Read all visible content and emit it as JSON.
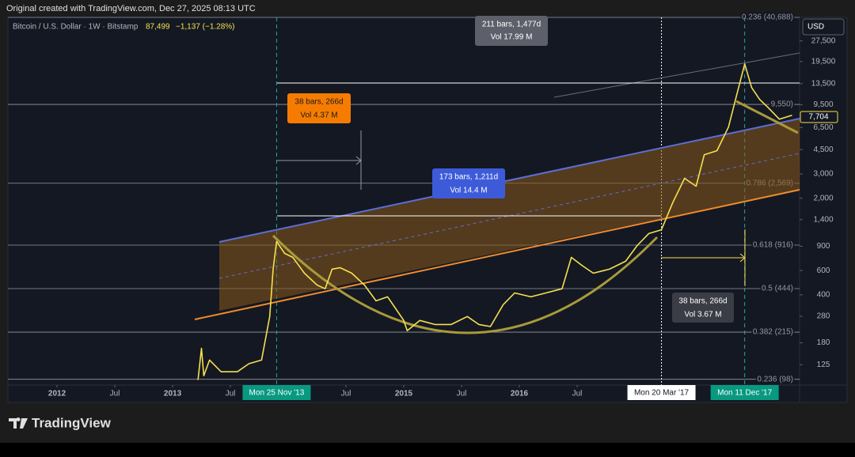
{
  "header": {
    "credit": "Original created with TradingView.com, Dec 27, 2025 08:13 UTC",
    "last": "87,499",
    "change": "−1,137 (−1.28%)",
    "currency": "USD",
    "price_tag": "7,704"
  },
  "chart_data": {
    "type": "line",
    "log_scale": true,
    "grid": false,
    "series": [
      {
        "name": "Bitcoin / U.S. Dollar · 1W · Bitstamp",
        "color": "#f5e050",
        "x": [
          2013.22,
          2013.25,
          2013.27,
          2013.32,
          2013.42,
          2013.56,
          2013.66,
          2013.77,
          2013.84,
          2013.87,
          2013.9,
          2013.97,
          2014.04,
          2014.14,
          2014.25,
          2014.32,
          2014.38,
          2014.45,
          2014.55,
          2014.66,
          2014.76,
          2014.86,
          2015.0,
          2015.03,
          2015.14,
          2015.27,
          2015.41,
          2015.55,
          2015.65,
          2015.75,
          2015.86,
          2015.96,
          2016.1,
          2016.23,
          2016.37,
          2016.45,
          2016.54,
          2016.64,
          2016.78,
          2016.92,
          2017.02,
          2017.12,
          2017.23,
          2017.33,
          2017.43,
          2017.53,
          2017.6,
          2017.71,
          2017.81,
          2017.88,
          2017.95,
          2018.01,
          2018.08,
          2018.15,
          2018.25,
          2018.36
        ],
        "values": [
          97,
          164,
          104,
          135,
          111,
          111,
          127,
          135,
          279,
          614,
          973,
          798,
          747,
          574,
          471,
          443,
          614,
          629,
          574,
          471,
          362,
          387,
          261,
          220,
          261,
          244,
          244,
          279,
          244,
          236,
          339,
          413,
          387,
          413,
          443,
          747,
          655,
          574,
          614,
          700,
          910,
          1110,
          1183,
          1875,
          2786,
          2443,
          4130,
          4415,
          6550,
          11090,
          18750,
          12650,
          10370,
          9100,
          7460,
          7980
        ]
      }
    ],
    "xlim": [
      2011.575,
      2018.425
    ],
    "xticks": [
      {
        "value": 2012,
        "label": "2012"
      },
      {
        "value": 2012.5,
        "label": "Jul"
      },
      {
        "value": 2013,
        "label": "2013"
      },
      {
        "value": 2013.5,
        "label": "Jul"
      },
      {
        "value": 2014.5,
        "label": "Jul"
      },
      {
        "value": 2015,
        "label": "2015"
      },
      {
        "value": 2015.5,
        "label": "Jul"
      },
      {
        "value": 2016,
        "label": "2016"
      },
      {
        "value": 2016.5,
        "label": "Jul"
      }
    ],
    "ylim": [
      89,
      40700
    ],
    "yticks": [
      125,
      180,
      280,
      400,
      600,
      900,
      {
        "value": 1400,
        "label": "1,400"
      },
      {
        "value": 2000,
        "label": "2,000"
      },
      {
        "value": 3000,
        "label": "3,000"
      },
      {
        "value": 4500,
        "label": "4,500"
      },
      {
        "value": 6500,
        "label": "6,500"
      },
      {
        "value": 9500,
        "label": "9,500"
      },
      {
        "value": 13500,
        "label": "13,500"
      },
      {
        "value": 19500,
        "label": "19,500"
      },
      {
        "value": 27500,
        "label": "27,500"
      }
    ],
    "fib_levels": [
      {
        "value": 40688,
        "label": "0.236 (40,688)"
      },
      {
        "value": 9550,
        "label": "9,550)"
      },
      {
        "value": 2569,
        "label": "0.786 (2,569)"
      },
      {
        "value": 916,
        "label": "0.618 (916)"
      },
      {
        "value": 444,
        "label": "0.5 (444)"
      },
      {
        "value": 215,
        "label": "0.382 (215)"
      },
      {
        "value": 98,
        "label": "0.236 (98)"
      }
    ],
    "date_markers": [
      {
        "x": 2013.9,
        "label": "Mon 25 Nov '13",
        "color": "#089981"
      },
      {
        "x": 2017.23,
        "label": "Mon 20 Mar '17",
        "color": "#ffffff"
      },
      {
        "x": 2017.95,
        "label": "Mon 11 Dec '17",
        "color": "#089981"
      }
    ]
  },
  "annotations": [
    {
      "bars": "211 bars, 1,477d",
      "vol": "Vol 17.99 M"
    },
    {
      "bars": "38 bars, 266d",
      "vol": "Vol 4.37 M"
    },
    {
      "bars": "173 bars, 1,211d",
      "vol": "Vol 14.4 M"
    },
    {
      "bars": "38 bars, 266d",
      "vol": "Vol 3.67 M"
    }
  ],
  "footer": {
    "brand": "TradingView"
  }
}
